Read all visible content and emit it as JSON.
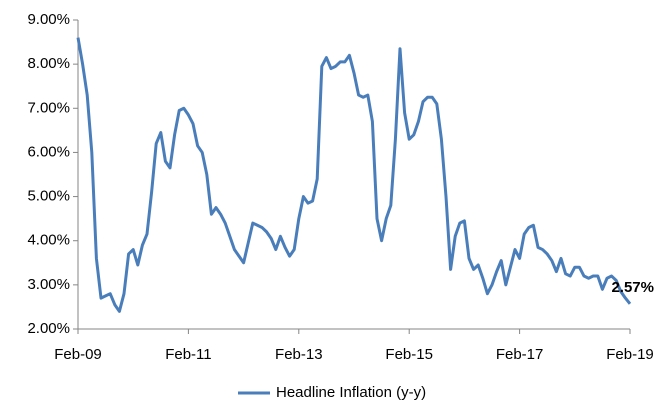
{
  "chart_data": {
    "type": "line",
    "categories": [
      "Feb-09",
      null,
      null,
      null,
      null,
      null,
      null,
      null,
      null,
      null,
      null,
      null,
      null,
      null,
      null,
      null,
      null,
      null,
      null,
      null,
      null,
      null,
      null,
      null,
      "Feb-11",
      null,
      null,
      null,
      null,
      null,
      null,
      null,
      null,
      null,
      null,
      null,
      null,
      null,
      null,
      null,
      null,
      null,
      null,
      null,
      null,
      null,
      null,
      null,
      "Feb-13",
      null,
      null,
      null,
      null,
      null,
      null,
      null,
      null,
      null,
      null,
      null,
      null,
      null,
      null,
      null,
      null,
      null,
      null,
      null,
      null,
      null,
      null,
      null,
      "Feb-15",
      null,
      null,
      null,
      null,
      null,
      null,
      null,
      null,
      null,
      null,
      null,
      null,
      null,
      null,
      null,
      null,
      null,
      null,
      null,
      null,
      null,
      null,
      null,
      "Feb-17",
      null,
      null,
      null,
      null,
      null,
      null,
      null,
      null,
      null,
      null,
      null,
      null,
      null,
      null,
      null,
      null,
      null,
      null,
      null,
      null,
      null,
      null,
      null,
      "Feb-19"
    ],
    "series": [
      {
        "name": "Headline Inflation (y-y)",
        "color": "#4a7ebb",
        "values": [
          8.6,
          8.0,
          7.3,
          6.0,
          3.6,
          2.7,
          2.75,
          2.8,
          2.55,
          2.4,
          2.8,
          3.7,
          3.8,
          3.45,
          3.9,
          4.15,
          5.1,
          6.2,
          6.45,
          5.8,
          5.65,
          6.4,
          6.95,
          7.0,
          6.85,
          6.65,
          6.15,
          6.0,
          5.5,
          4.6,
          4.75,
          4.6,
          4.4,
          4.1,
          3.8,
          3.65,
          3.5,
          3.95,
          4.4,
          4.35,
          4.3,
          4.2,
          4.05,
          3.8,
          4.1,
          3.85,
          3.65,
          3.8,
          4.5,
          5.0,
          4.85,
          4.9,
          5.4,
          7.95,
          8.15,
          7.9,
          7.95,
          8.05,
          8.05,
          8.2,
          7.8,
          7.3,
          7.25,
          7.3,
          6.7,
          4.5,
          4.0,
          4.5,
          4.8,
          6.3,
          8.35,
          6.9,
          6.3,
          6.4,
          6.7,
          7.15,
          7.25,
          7.25,
          7.1,
          6.3,
          5.0,
          3.35,
          4.1,
          4.4,
          4.45,
          3.6,
          3.35,
          3.45,
          3.15,
          2.8,
          3.0,
          3.3,
          3.55,
          3.0,
          3.4,
          3.8,
          3.6,
          4.15,
          4.3,
          4.35,
          3.85,
          3.8,
          3.7,
          3.55,
          3.3,
          3.6,
          3.25,
          3.2,
          3.4,
          3.4,
          3.2,
          3.15,
          3.2,
          3.2,
          2.9,
          3.15,
          3.2,
          3.1,
          2.85,
          2.7,
          2.57
        ],
        "value_labels": [
          null,
          null,
          null,
          null,
          null,
          null,
          null,
          null,
          null,
          null,
          null,
          null,
          null,
          null,
          null,
          null,
          null,
          null,
          null,
          null,
          null,
          null,
          null,
          null,
          null,
          null,
          null,
          null,
          null,
          null,
          null,
          null,
          null,
          null,
          null,
          null,
          null,
          null,
          null,
          null,
          null,
          null,
          null,
          null,
          null,
          null,
          null,
          null,
          null,
          null,
          null,
          null,
          null,
          null,
          null,
          null,
          null,
          null,
          null,
          null,
          null,
          null,
          null,
          null,
          null,
          null,
          null,
          null,
          null,
          null,
          null,
          null,
          null,
          null,
          null,
          null,
          null,
          null,
          null,
          null,
          null,
          null,
          null,
          null,
          null,
          null,
          null,
          null,
          null,
          null,
          null,
          null,
          null,
          null,
          null,
          null,
          null,
          null,
          null,
          null,
          null,
          null,
          null,
          null,
          null,
          null,
          null,
          null,
          null,
          null,
          null,
          null,
          null,
          null,
          null,
          null,
          null,
          null,
          null,
          null,
          "2.57%"
        ]
      }
    ],
    "ylim": [
      2,
      9
    ],
    "yticks": [
      {
        "value": 2,
        "label": "2.00%"
      },
      {
        "value": 3,
        "label": "3.00%"
      },
      {
        "value": 4,
        "label": "4.00%"
      },
      {
        "value": 5,
        "label": "5.00%"
      },
      {
        "value": 6,
        "label": "6.00%"
      },
      {
        "value": 7,
        "label": "7.00%"
      },
      {
        "value": 8,
        "label": "8.00%"
      },
      {
        "value": 9,
        "label": "9.00%"
      }
    ],
    "grid": false,
    "legend": "bottom"
  }
}
